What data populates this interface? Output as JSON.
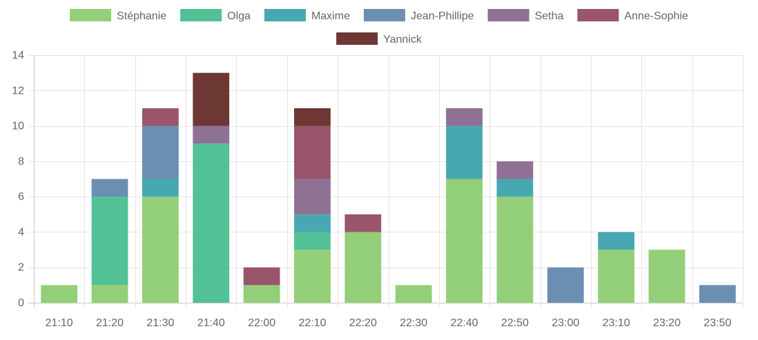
{
  "chart_data": {
    "type": "bar",
    "stacked": true,
    "categories": [
      "21:10",
      "21:20",
      "21:30",
      "21:40",
      "22:00",
      "22:10",
      "22:20",
      "22:30",
      "22:40",
      "22:50",
      "23:00",
      "23:10",
      "23:20",
      "23:50"
    ],
    "series": [
      {
        "name": "Stéphanie",
        "color": "#93cf78",
        "values": [
          1,
          1,
          6,
          0,
          1,
          3,
          4,
          1,
          7,
          6,
          0,
          3,
          3,
          0
        ]
      },
      {
        "name": "Olga",
        "color": "#52c196",
        "values": [
          0,
          5,
          0,
          9,
          0,
          1,
          0,
          0,
          0,
          0,
          0,
          0,
          0,
          0
        ]
      },
      {
        "name": "Maxime",
        "color": "#48a8b1",
        "values": [
          0,
          0,
          1,
          0,
          0,
          1,
          0,
          0,
          3,
          1,
          0,
          1,
          0,
          0
        ]
      },
      {
        "name": "Jean-Phillipe",
        "color": "#6a8fb3",
        "values": [
          0,
          1,
          3,
          0,
          0,
          0,
          0,
          0,
          0,
          0,
          2,
          0,
          0,
          1
        ]
      },
      {
        "name": "Setha",
        "color": "#8e7193",
        "values": [
          0,
          0,
          0,
          1,
          0,
          2,
          0,
          0,
          1,
          1,
          0,
          0,
          0,
          0
        ]
      },
      {
        "name": "Anne-Sophie",
        "color": "#99566a",
        "values": [
          0,
          0,
          1,
          0,
          1,
          3,
          1,
          0,
          0,
          0,
          0,
          0,
          0,
          0
        ]
      },
      {
        "name": "Yannick",
        "color": "#6d3834",
        "values": [
          0,
          0,
          0,
          3,
          0,
          1,
          0,
          0,
          0,
          0,
          0,
          0,
          0,
          0
        ]
      }
    ],
    "ylim": [
      0,
      14
    ],
    "yticks": [
      0,
      2,
      4,
      6,
      8,
      10,
      12,
      14
    ],
    "grid": true,
    "legend_position": "top"
  }
}
